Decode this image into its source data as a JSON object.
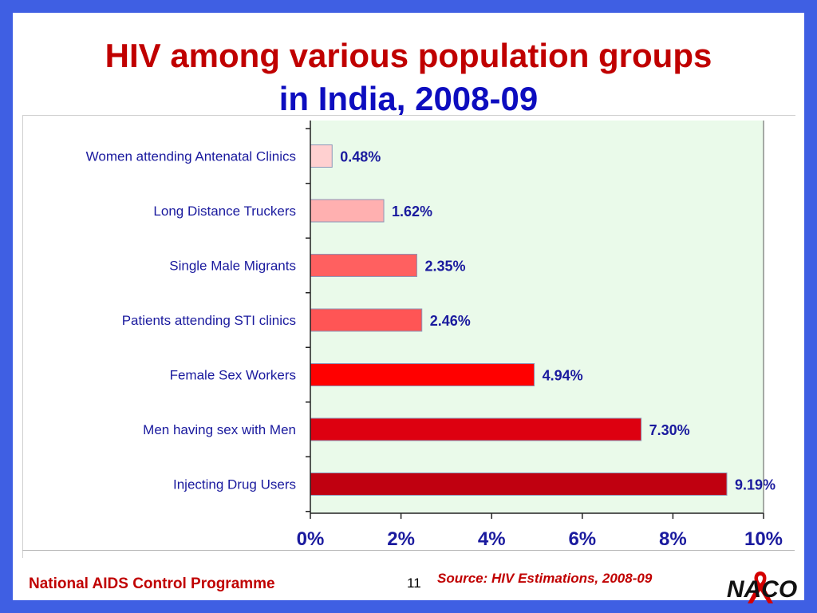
{
  "slide": {
    "title_line1": "HIV among various population groups",
    "title_line2": "in India, 2008-09",
    "footer_left": "National AIDS Control Programme",
    "page_number": "11",
    "source": "Source: HIV Estimations, 2008-09",
    "logo_text": "NACO"
  },
  "colors": {
    "background_frame": "#3f5fe3",
    "title_red": "#c00000",
    "title_blue": "#0d0dbf",
    "plot_area": "#eafaea",
    "label_blue": "#1a1a9e"
  },
  "chart_data": {
    "type": "bar",
    "orientation": "horizontal",
    "categories": [
      "Women attending Antenatal Clinics",
      "Long Distance Truckers",
      "Single Male Migrants",
      "Patients attending STI clinics",
      "Female Sex Workers",
      "Men having sex with Men",
      "Injecting Drug Users"
    ],
    "values": [
      0.48,
      1.62,
      2.35,
      2.46,
      4.94,
      7.3,
      9.19
    ],
    "data_labels": [
      "0.48%",
      "1.62%",
      "2.35%",
      "2.46%",
      "4.94%",
      "7.30%",
      "9.19%"
    ],
    "bar_colors": [
      "#ffd0d0",
      "#ffb0b0",
      "#ff6060",
      "#ff5555",
      "#ff0000",
      "#dd0010",
      "#c00010"
    ],
    "xlim": [
      0,
      10
    ],
    "x_ticks": [
      0,
      2,
      4,
      6,
      8,
      10
    ],
    "x_tick_labels": [
      "0%",
      "2%",
      "4%",
      "6%",
      "8%",
      "10%"
    ],
    "grid": false
  }
}
